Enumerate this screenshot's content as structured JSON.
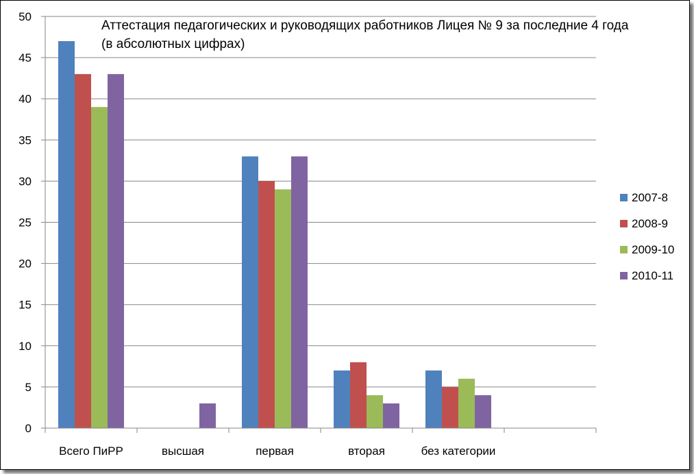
{
  "chart_data": {
    "type": "bar",
    "title_lines": [
      "Аттестация педагогических и руководящих работников Лицея № 9 за последние 4 года",
      "(в абсолютных  цифрах)"
    ],
    "categories": [
      "Всего ПиРР",
      "высшая",
      "первая",
      "вторая",
      "без категории",
      ""
    ],
    "series": [
      {
        "name": "2007-8",
        "color": "#4F81BD",
        "values": [
          47,
          0,
          33,
          7,
          7,
          0
        ]
      },
      {
        "name": "2008-9",
        "color": "#C0504D",
        "values": [
          43,
          0,
          30,
          8,
          5,
          0
        ]
      },
      {
        "name": "2009-10",
        "color": "#9BBB59",
        "values": [
          39,
          0,
          29,
          4,
          6,
          0
        ]
      },
      {
        "name": "2010-11",
        "color": "#8064A2",
        "values": [
          43,
          3,
          33,
          3,
          4,
          0
        ]
      }
    ],
    "ylim": [
      0,
      50
    ],
    "yticks": [
      0,
      5,
      10,
      15,
      20,
      25,
      30,
      35,
      40,
      45,
      50
    ],
    "grid": true,
    "legend_position": "right"
  }
}
